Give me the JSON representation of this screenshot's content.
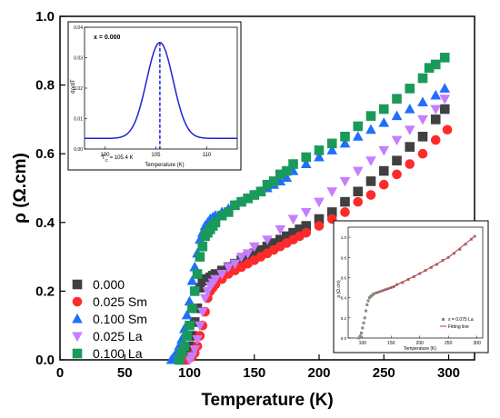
{
  "colors": {
    "black": "#404040",
    "red": "#ff2a2a",
    "blue": "#1f6fff",
    "violet": "#c77dff",
    "green": "#1a9a5a",
    "inset_line": "#1e24d6",
    "fit_line": "#d03030"
  },
  "chart_data": [
    {
      "type": "scatter",
      "xlabel": "Temperature (K)",
      "ylabel": "ρ (Ω.cm)",
      "xlim": [
        0,
        320
      ],
      "ylim": [
        0,
        1.0
      ],
      "xticks": [
        "0",
        "50",
        "100",
        "150",
        "200",
        "250",
        "300"
      ],
      "yticks": [
        "0.0",
        "0.2",
        "0.4",
        "0.6",
        "0.8",
        "1.0"
      ],
      "legend_position": "bottom-left",
      "series": [
        {
          "name": "0.000",
          "marker": "square",
          "color": "#404040",
          "x": [
            94,
            96,
            98,
            100,
            102,
            104,
            106,
            108,
            110,
            112,
            114,
            116,
            118,
            120,
            125,
            130,
            135,
            140,
            145,
            150,
            155,
            160,
            165,
            170,
            175,
            180,
            185,
            190,
            200,
            210,
            220,
            230,
            240,
            250,
            260,
            270,
            280,
            290,
            297
          ],
          "y": [
            0.0,
            0.01,
            0.02,
            0.04,
            0.07,
            0.11,
            0.15,
            0.21,
            0.23,
            0.235,
            0.235,
            0.24,
            0.245,
            0.25,
            0.26,
            0.27,
            0.28,
            0.29,
            0.3,
            0.31,
            0.32,
            0.33,
            0.34,
            0.35,
            0.36,
            0.37,
            0.38,
            0.39,
            0.41,
            0.43,
            0.46,
            0.49,
            0.52,
            0.55,
            0.58,
            0.62,
            0.65,
            0.7,
            0.73
          ]
        },
        {
          "name": "0.025 Sm",
          "marker": "circle",
          "color": "#ff2a2a",
          "x": [
            98,
            100,
            102,
            104,
            106,
            108,
            110,
            112,
            114,
            116,
            118,
            120,
            125,
            130,
            135,
            140,
            145,
            150,
            155,
            160,
            165,
            170,
            175,
            180,
            185,
            190,
            200,
            210,
            220,
            230,
            240,
            250,
            260,
            270,
            280,
            290,
            299
          ],
          "y": [
            0.0,
            0.005,
            0.01,
            0.02,
            0.04,
            0.07,
            0.1,
            0.14,
            0.18,
            0.2,
            0.21,
            0.22,
            0.235,
            0.25,
            0.26,
            0.27,
            0.28,
            0.29,
            0.3,
            0.31,
            0.32,
            0.33,
            0.34,
            0.35,
            0.36,
            0.37,
            0.39,
            0.41,
            0.43,
            0.46,
            0.48,
            0.51,
            0.54,
            0.57,
            0.6,
            0.64,
            0.67
          ]
        },
        {
          "name": "0.100 Sm",
          "marker": "triangle-up",
          "color": "#1f6fff",
          "x": [
            86,
            88,
            90,
            92,
            94,
            96,
            98,
            100,
            102,
            104,
            106,
            108,
            110,
            112,
            114,
            116,
            118,
            120,
            125,
            130,
            135,
            140,
            145,
            150,
            155,
            160,
            165,
            170,
            175,
            180,
            190,
            200,
            210,
            220,
            230,
            240,
            250,
            260,
            270,
            280,
            290,
            297
          ],
          "y": [
            0.0,
            0.01,
            0.02,
            0.04,
            0.06,
            0.09,
            0.13,
            0.17,
            0.23,
            0.27,
            0.31,
            0.35,
            0.37,
            0.39,
            0.4,
            0.41,
            0.415,
            0.42,
            0.43,
            0.44,
            0.45,
            0.46,
            0.47,
            0.48,
            0.49,
            0.5,
            0.51,
            0.52,
            0.53,
            0.55,
            0.57,
            0.59,
            0.61,
            0.63,
            0.65,
            0.67,
            0.69,
            0.71,
            0.73,
            0.75,
            0.77,
            0.79
          ]
        },
        {
          "name": "0.025 La",
          "marker": "triangle-down",
          "color": "#c77dff",
          "x": [
            100,
            102,
            104,
            106,
            108,
            110,
            112,
            114,
            116,
            118,
            120,
            125,
            130,
            135,
            140,
            145,
            150,
            160,
            170,
            180,
            190,
            200,
            210,
            220,
            230,
            240,
            250,
            260,
            270,
            280,
            290,
            297
          ],
          "y": [
            0.0,
            0.01,
            0.03,
            0.06,
            0.1,
            0.14,
            0.18,
            0.2,
            0.215,
            0.225,
            0.235,
            0.25,
            0.27,
            0.28,
            0.3,
            0.31,
            0.33,
            0.35,
            0.38,
            0.41,
            0.43,
            0.46,
            0.49,
            0.52,
            0.55,
            0.58,
            0.61,
            0.64,
            0.67,
            0.7,
            0.73,
            0.76
          ]
        },
        {
          "name": "0.100 La",
          "marker": "square",
          "color": "#1a9a5a",
          "x": [
            92,
            94,
            96,
            98,
            100,
            102,
            104,
            106,
            108,
            110,
            112,
            114,
            116,
            118,
            120,
            125,
            130,
            135,
            140,
            145,
            150,
            155,
            160,
            165,
            170,
            175,
            180,
            190,
            200,
            210,
            220,
            230,
            240,
            250,
            260,
            270,
            280,
            285,
            290,
            297
          ],
          "y": [
            0.0,
            0.02,
            0.04,
            0.07,
            0.1,
            0.15,
            0.2,
            0.25,
            0.3,
            0.33,
            0.36,
            0.37,
            0.38,
            0.39,
            0.4,
            0.42,
            0.43,
            0.45,
            0.46,
            0.47,
            0.48,
            0.49,
            0.51,
            0.52,
            0.54,
            0.55,
            0.57,
            0.59,
            0.61,
            0.63,
            0.65,
            0.68,
            0.71,
            0.73,
            0.76,
            0.79,
            0.82,
            0.85,
            0.86,
            0.88
          ]
        }
      ]
    },
    {
      "type": "line",
      "annotation": "x = 0.000",
      "tc_label": "T",
      "tc_sub": "C",
      "tc_value": " = 105.4 K",
      "tc": 105.4,
      "xlabel": "Temperature (K)",
      "ylabel": "dρ/dT",
      "xlim": [
        98,
        113
      ],
      "ylim": [
        0,
        0.04
      ],
      "xticks": [
        "100",
        "105",
        "110"
      ],
      "yticks": [
        "0.00",
        "0.01",
        "0.02",
        "0.03",
        "0.04"
      ],
      "curve": {
        "center": 105.4,
        "peak": 0.035,
        "baseline": 0.0035,
        "sigma": 1.3
      }
    },
    {
      "type": "scatter",
      "xlabel": "Temperature (K)",
      "ylabel": "ρ (Ω.cm)",
      "xlim": [
        75,
        310
      ],
      "ylim": [
        0,
        1.1
      ],
      "xticks": [
        "100",
        "150",
        "200",
        "250",
        "300"
      ],
      "yticks": [
        "0.0",
        "0.2",
        "0.4",
        "0.6",
        "0.8",
        "1.0"
      ],
      "legend": [
        "x = 0.075 La",
        "Fitting line"
      ],
      "points_x": [
        94,
        96,
        98,
        100,
        102,
        104,
        106,
        108,
        110,
        112,
        114,
        116,
        118,
        120,
        125,
        130,
        135,
        140,
        145,
        150,
        155,
        160,
        170,
        180,
        190,
        200,
        210,
        220,
        230,
        240,
        250,
        260,
        270,
        280,
        290,
        296
      ],
      "points_y": [
        0.0,
        0.02,
        0.05,
        0.1,
        0.15,
        0.2,
        0.27,
        0.33,
        0.37,
        0.4,
        0.41,
        0.42,
        0.43,
        0.44,
        0.45,
        0.46,
        0.47,
        0.48,
        0.49,
        0.5,
        0.51,
        0.53,
        0.55,
        0.58,
        0.61,
        0.64,
        0.67,
        0.7,
        0.73,
        0.77,
        0.8,
        0.84,
        0.88,
        0.93,
        0.98,
        1.01
      ],
      "fit_x": [
        120,
        150,
        200,
        250,
        296
      ],
      "fit_y": [
        0.44,
        0.5,
        0.64,
        0.8,
        1.01
      ]
    }
  ]
}
